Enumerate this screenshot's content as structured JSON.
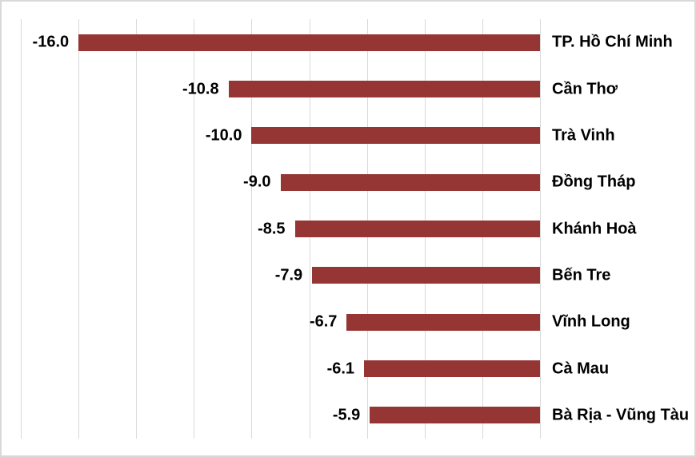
{
  "chart_data": {
    "type": "bar",
    "orientation": "horizontal",
    "title": "",
    "categories": [
      "TP. Hồ Chí Minh",
      "Cần Thơ",
      "Trà Vinh",
      "Đồng Tháp",
      "Khánh Hoà",
      "Bến Tre",
      "Vĩnh Long",
      "Cà Mau",
      "Bà Rịa - Vũng Tàu"
    ],
    "values": [
      -16.0,
      -10.8,
      -10.0,
      -9.0,
      -8.5,
      -7.9,
      -6.7,
      -6.1,
      -5.9
    ],
    "value_decimals": 1,
    "xlim": [
      -18,
      0
    ],
    "gridline_interval": 2,
    "grid": true,
    "legend": "none",
    "bar_color": "#963634",
    "gridline_color": "#d9d9d9",
    "text_color": "#000000",
    "background": "#ffffff",
    "border_color": "#d9d9d9"
  }
}
